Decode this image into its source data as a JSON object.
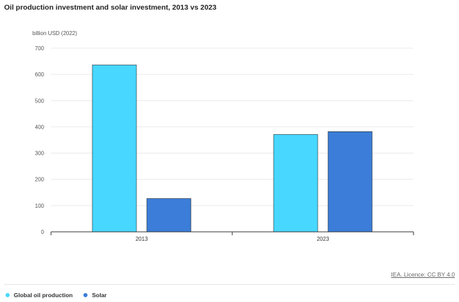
{
  "chart_data": {
    "type": "bar",
    "title": "Oil production investment and solar investment, 2013 vs 2023",
    "ylabel": "billion USD (2022)",
    "xlabel": "",
    "categories": [
      "2013",
      "2023"
    ],
    "series": [
      {
        "name": "Global oil production",
        "color": "#47D7FF",
        "values": [
          636,
          371
        ]
      },
      {
        "name": "Solar",
        "color": "#3B7DD8",
        "values": [
          127,
          382
        ]
      }
    ],
    "ylim": [
      0,
      700
    ],
    "yticks": [
      0,
      100,
      200,
      300,
      400,
      500,
      600,
      700
    ],
    "grid": true,
    "legend_position": "bottom-left"
  },
  "source": "IEA. Licence: CC BY 4.0"
}
